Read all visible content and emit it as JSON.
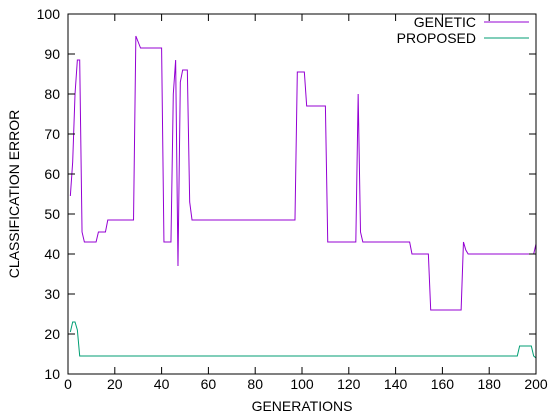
{
  "chart_data": {
    "type": "line",
    "xlabel": "GENERATIONS",
    "ylabel": "CLASSIFICATION ERROR",
    "xlim": [
      0,
      200
    ],
    "ylim": [
      10,
      100
    ],
    "xticks": [
      0,
      20,
      40,
      60,
      80,
      100,
      120,
      140,
      160,
      180,
      200
    ],
    "yticks": [
      10,
      20,
      30,
      40,
      50,
      60,
      70,
      80,
      90,
      100
    ],
    "grid": false,
    "legend": "top-right",
    "series": [
      {
        "name": "GENETIC",
        "color": "#9400d3",
        "points": [
          [
            1,
            54.5
          ],
          [
            2,
            63
          ],
          [
            3,
            80
          ],
          [
            4,
            88.5
          ],
          [
            5,
            88.5
          ],
          [
            6,
            45.5
          ],
          [
            7,
            43
          ],
          [
            12,
            43
          ],
          [
            13,
            45.5
          ],
          [
            16,
            45.5
          ],
          [
            17,
            48.5
          ],
          [
            28,
            48.5
          ],
          [
            29,
            94.5
          ],
          [
            30,
            93
          ],
          [
            31,
            91.5
          ],
          [
            40,
            91.5
          ],
          [
            41,
            43
          ],
          [
            44,
            43
          ],
          [
            45,
            80
          ],
          [
            46,
            88.5
          ],
          [
            47,
            37
          ],
          [
            48,
            83
          ],
          [
            49,
            86
          ],
          [
            51,
            86
          ],
          [
            52,
            53
          ],
          [
            53,
            48.5
          ],
          [
            97,
            48.5
          ],
          [
            98,
            85.5
          ],
          [
            101,
            85.5
          ],
          [
            102,
            77
          ],
          [
            110,
            77
          ],
          [
            111,
            43
          ],
          [
            123,
            43
          ],
          [
            124,
            80
          ],
          [
            125,
            45.5
          ],
          [
            126,
            43
          ],
          [
            146,
            43
          ],
          [
            147,
            40
          ],
          [
            154,
            40
          ],
          [
            155,
            26
          ],
          [
            168,
            26
          ],
          [
            169,
            43
          ],
          [
            170,
            41
          ],
          [
            171,
            40
          ],
          [
            199,
            40
          ],
          [
            200,
            42.5
          ]
        ]
      },
      {
        "name": "PROPOSED",
        "color": "#009e73",
        "points": [
          [
            1,
            20.5
          ],
          [
            2,
            23
          ],
          [
            3,
            23
          ],
          [
            4,
            21
          ],
          [
            5,
            14.5
          ],
          [
            192,
            14.5
          ],
          [
            193,
            17
          ],
          [
            198,
            17
          ],
          [
            199,
            14.5
          ],
          [
            200,
            14
          ]
        ]
      }
    ]
  }
}
